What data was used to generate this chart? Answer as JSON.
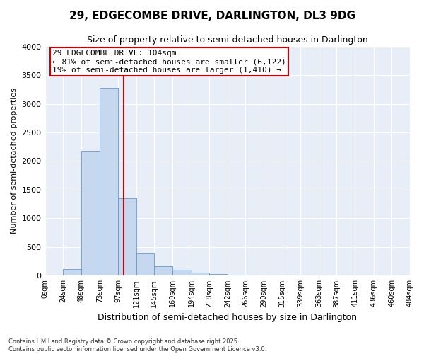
{
  "title": "29, EDGECOMBE DRIVE, DARLINGTON, DL3 9DG",
  "subtitle": "Size of property relative to semi-detached houses in Darlington",
  "xlabel": "Distribution of semi-detached houses by size in Darlington",
  "ylabel": "Number of semi-detached properties",
  "footnote1": "Contains HM Land Registry data © Crown copyright and database right 2025.",
  "footnote2": "Contains public sector information licensed under the Open Government Licence v3.0.",
  "annotation_title": "29 EDGECOMBE DRIVE: 104sqm",
  "annotation_line1": "← 81% of semi-detached houses are smaller (6,122)",
  "annotation_line2": "19% of semi-detached houses are larger (1,410) →",
  "property_size": 104,
  "bin_edges": [
    0,
    24,
    48,
    73,
    97,
    121,
    145,
    169,
    194,
    218,
    242,
    266,
    290,
    315,
    339,
    363,
    387,
    411,
    436,
    460,
    484
  ],
  "bin_counts": [
    0,
    120,
    2175,
    3275,
    1350,
    390,
    165,
    100,
    60,
    35,
    15,
    5,
    5,
    2,
    2,
    1,
    1,
    0,
    0,
    0
  ],
  "bar_color": "#c5d8f0",
  "bar_edge_color": "#6699cc",
  "vline_color": "#cc0000",
  "vline_x": 104,
  "annotation_box_color": "#cc0000",
  "fig_background_color": "#ffffff",
  "plot_background_color": "#e8eef8",
  "grid_color": "#ffffff",
  "ylim": [
    0,
    4000
  ],
  "yticks": [
    0,
    500,
    1000,
    1500,
    2000,
    2500,
    3000,
    3500,
    4000
  ],
  "tick_labels": [
    "0sqm",
    "24sqm",
    "48sqm",
    "73sqm",
    "97sqm",
    "121sqm",
    "145sqm",
    "169sqm",
    "194sqm",
    "218sqm",
    "242sqm",
    "266sqm",
    "290sqm",
    "315sqm",
    "339sqm",
    "363sqm",
    "387sqm",
    "411sqm",
    "436sqm",
    "460sqm",
    "484sqm"
  ],
  "title_fontsize": 11,
  "subtitle_fontsize": 9,
  "xlabel_fontsize": 9,
  "ylabel_fontsize": 8,
  "ytick_fontsize": 8,
  "xtick_fontsize": 7,
  "footnote_fontsize": 6,
  "annotation_fontsize": 8
}
